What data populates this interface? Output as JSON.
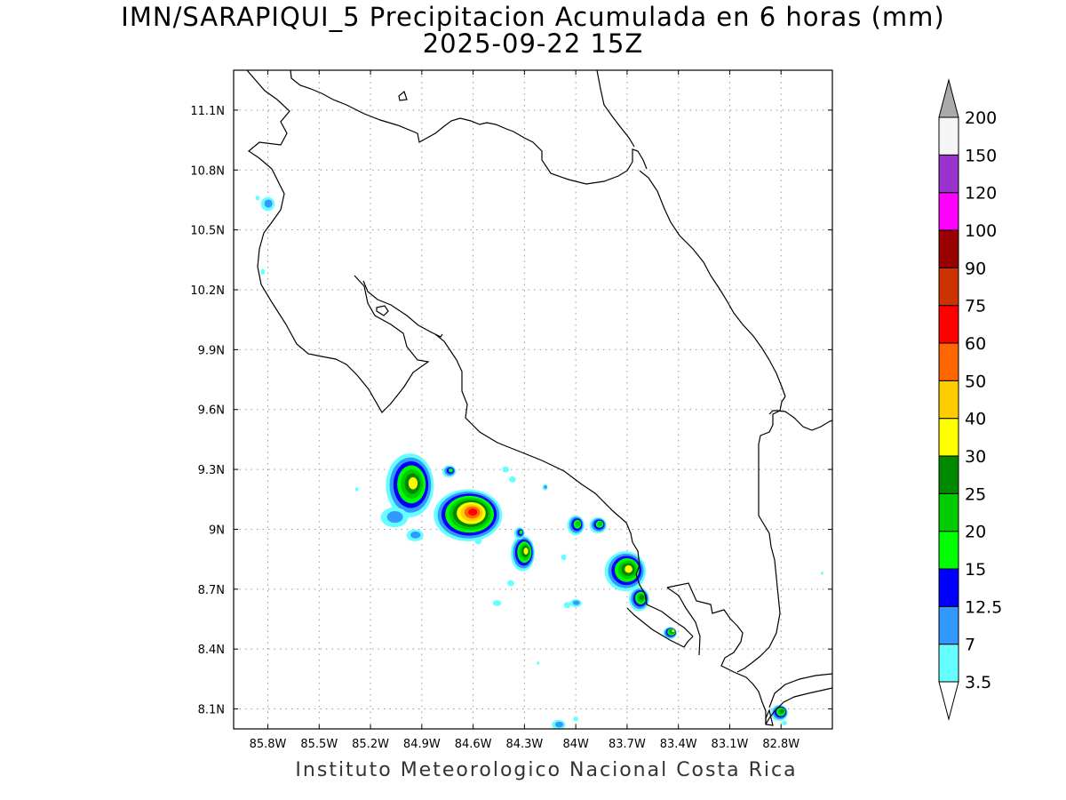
{
  "title": {
    "line1": "IMN/SARAPIQUI_5 Precipitacion Acumulada en 6 horas (mm)",
    "line2": "2025-09-22 15Z"
  },
  "footer": "Instituto Meteorologico Nacional Costa Rica",
  "axes": {
    "lon_range": [
      -86.0,
      -82.5
    ],
    "lat_range": [
      8.0,
      11.3
    ],
    "x_ticks": [
      {
        "value": -85.8,
        "label": "85.8W"
      },
      {
        "value": -85.5,
        "label": "85.5W"
      },
      {
        "value": -85.2,
        "label": "85.2W"
      },
      {
        "value": -84.9,
        "label": "84.9W"
      },
      {
        "value": -84.6,
        "label": "84.6W"
      },
      {
        "value": -84.3,
        "label": "84.3W"
      },
      {
        "value": -84.0,
        "label": "84W"
      },
      {
        "value": -83.7,
        "label": "83.7W"
      },
      {
        "value": -83.4,
        "label": "83.4W"
      },
      {
        "value": -83.1,
        "label": "83.1W"
      },
      {
        "value": -82.8,
        "label": "82.8W"
      }
    ],
    "y_ticks": [
      {
        "value": 11.1,
        "label": "11.1N"
      },
      {
        "value": 10.8,
        "label": "10.8N"
      },
      {
        "value": 10.5,
        "label": "10.5N"
      },
      {
        "value": 10.2,
        "label": "10.2N"
      },
      {
        "value": 9.9,
        "label": "9.9N"
      },
      {
        "value": 9.6,
        "label": "9.6N"
      },
      {
        "value": 9.3,
        "label": "9.3N"
      },
      {
        "value": 9.0,
        "label": "9N"
      },
      {
        "value": 8.7,
        "label": "8.7N"
      },
      {
        "value": 8.4,
        "label": "8.4N"
      },
      {
        "value": 8.1,
        "label": "8.1N"
      }
    ],
    "grid": "dotted"
  },
  "colorbar": {
    "levels": [
      {
        "label": "3.5",
        "color": "#ffffff"
      },
      {
        "label": "7",
        "color": "#66ffff"
      },
      {
        "label": "12.5",
        "color": "#3399ff"
      },
      {
        "label": "15",
        "color": "#0000ff"
      },
      {
        "label": "20",
        "color": "#00ff00"
      },
      {
        "label": "25",
        "color": "#00cc00"
      },
      {
        "label": "30",
        "color": "#008800"
      },
      {
        "label": "40",
        "color": "#ffff00"
      },
      {
        "label": "50",
        "color": "#ffcc00"
      },
      {
        "label": "60",
        "color": "#ff6600"
      },
      {
        "label": "75",
        "color": "#ff0000"
      },
      {
        "label": "90",
        "color": "#cc3300"
      },
      {
        "label": "100",
        "color": "#990000"
      },
      {
        "label": "120",
        "color": "#ff00ff"
      },
      {
        "label": "150",
        "color": "#9933cc"
      },
      {
        "label": "200",
        "color": "#f5f5f5"
      }
    ],
    "top_arrow_color": "#aaaaaa",
    "bottom_arrow_color": "#ffffff"
  },
  "precip_cells": [
    {
      "lon": -84.97,
      "lat": 9.22,
      "rx": 0.14,
      "ry": 0.16,
      "max": 40
    },
    {
      "lon": -84.63,
      "lat": 9.07,
      "rx": 0.2,
      "ry": 0.13,
      "max": 75
    },
    {
      "lon": -84.74,
      "lat": 9.29,
      "rx": 0.04,
      "ry": 0.03,
      "max": 20
    },
    {
      "lon": -85.06,
      "lat": 9.06,
      "rx": 0.08,
      "ry": 0.05,
      "max": 12.5
    },
    {
      "lon": -84.94,
      "lat": 8.97,
      "rx": 0.05,
      "ry": 0.03,
      "max": 12.5
    },
    {
      "lon": -84.31,
      "lat": 8.88,
      "rx": 0.07,
      "ry": 0.09,
      "max": 40
    },
    {
      "lon": -84.33,
      "lat": 8.98,
      "rx": 0.03,
      "ry": 0.03,
      "max": 20
    },
    {
      "lon": -84.0,
      "lat": 9.02,
      "rx": 0.05,
      "ry": 0.05,
      "max": 25
    },
    {
      "lon": -83.87,
      "lat": 9.02,
      "rx": 0.05,
      "ry": 0.04,
      "max": 25
    },
    {
      "lon": -83.71,
      "lat": 8.79,
      "rx": 0.12,
      "ry": 0.1,
      "max": 40
    },
    {
      "lon": -83.63,
      "lat": 8.65,
      "rx": 0.06,
      "ry": 0.06,
      "max": 30
    },
    {
      "lon": -83.45,
      "lat": 8.48,
      "rx": 0.04,
      "ry": 0.03,
      "max": 40
    },
    {
      "lon": -85.8,
      "lat": 10.63,
      "rx": 0.04,
      "ry": 0.035,
      "max": 12.5
    },
    {
      "lon": -85.86,
      "lat": 10.66,
      "rx": 0.012,
      "ry": 0.012,
      "max": 7
    },
    {
      "lon": -85.83,
      "lat": 10.29,
      "rx": 0.012,
      "ry": 0.015,
      "max": 7
    },
    {
      "lon": -84.41,
      "lat": 9.3,
      "rx": 0.02,
      "ry": 0.015,
      "max": 7
    },
    {
      "lon": -84.37,
      "lat": 9.25,
      "rx": 0.02,
      "ry": 0.015,
      "max": 7
    },
    {
      "lon": -84.57,
      "lat": 8.94,
      "rx": 0.02,
      "ry": 0.015,
      "max": 7
    },
    {
      "lon": -84.38,
      "lat": 8.73,
      "rx": 0.02,
      "ry": 0.015,
      "max": 7
    },
    {
      "lon": -84.46,
      "lat": 8.63,
      "rx": 0.025,
      "ry": 0.015,
      "max": 7
    },
    {
      "lon": -84.07,
      "lat": 8.86,
      "rx": 0.015,
      "ry": 0.015,
      "max": 7
    },
    {
      "lon": -84.18,
      "lat": 9.21,
      "rx": 0.015,
      "ry": 0.015,
      "max": 12.5
    },
    {
      "lon": -84.0,
      "lat": 8.63,
      "rx": 0.035,
      "ry": 0.02,
      "max": 12.5
    },
    {
      "lon": -84.05,
      "lat": 8.62,
      "rx": 0.02,
      "ry": 0.015,
      "max": 7
    },
    {
      "lon": -84.1,
      "lat": 8.02,
      "rx": 0.04,
      "ry": 0.025,
      "max": 12.5
    },
    {
      "lon": -84.0,
      "lat": 8.05,
      "rx": 0.015,
      "ry": 0.012,
      "max": 7
    },
    {
      "lon": -82.81,
      "lat": 8.08,
      "rx": 0.05,
      "ry": 0.04,
      "max": 30
    },
    {
      "lon": -82.78,
      "lat": 8.03,
      "rx": 0.015,
      "ry": 0.012,
      "max": 7
    },
    {
      "lon": -85.28,
      "lat": 9.2,
      "rx": 0.01,
      "ry": 0.01,
      "max": 7
    },
    {
      "lon": -84.22,
      "lat": 8.33,
      "rx": 0.008,
      "ry": 0.008,
      "max": 7
    },
    {
      "lon": -82.56,
      "lat": 8.78,
      "rx": 0.007,
      "ry": 0.007,
      "max": 7
    }
  ]
}
